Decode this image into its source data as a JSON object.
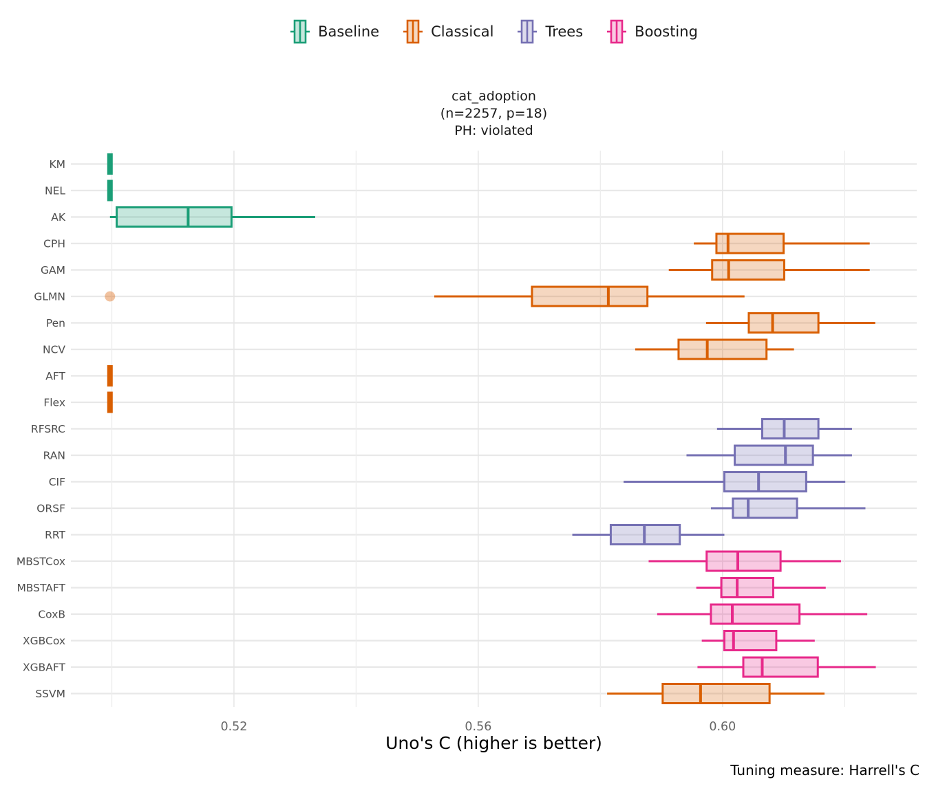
{
  "chart_data": {
    "type": "boxplot",
    "orientation": "horizontal",
    "title_lines": [
      "cat_adoption",
      "(n=2257, p=18)",
      "PH: violated"
    ],
    "xlabel": "Uno's C (higher is better)",
    "caption": "Tuning measure: Harrell's C",
    "legend_position": "top",
    "grid": true,
    "x_axis": {
      "lim": [
        0.4933,
        0.6318
      ],
      "major_ticks": [
        0.52,
        0.56,
        0.6
      ],
      "minor_ticks": [
        0.5,
        0.54,
        0.58,
        0.62
      ],
      "tick_labels": [
        "0.52",
        "0.56",
        "0.60"
      ]
    },
    "groups": [
      {
        "id": "baseline",
        "label": "Baseline",
        "color": "#1B9E77"
      },
      {
        "id": "classical",
        "label": "Classical",
        "color": "#D95F02"
      },
      {
        "id": "trees",
        "label": "Trees",
        "color": "#7570B3"
      },
      {
        "id": "boosting",
        "label": "Boosting",
        "color": "#E7298A"
      }
    ],
    "rows": [
      {
        "label": "KM",
        "group": "baseline",
        "lo": 0.4997,
        "q1": 0.4997,
        "median": 0.4997,
        "q3": 0.4997,
        "hi": 0.4997,
        "outliers": []
      },
      {
        "label": "NEL",
        "group": "baseline",
        "lo": 0.4997,
        "q1": 0.4997,
        "median": 0.4997,
        "q3": 0.4997,
        "hi": 0.4997,
        "outliers": []
      },
      {
        "label": "AK",
        "group": "baseline",
        "lo": 0.4997,
        "q1": 0.5008,
        "median": 0.5125,
        "q3": 0.5196,
        "hi": 0.5333,
        "outliers": []
      },
      {
        "label": "CPH",
        "group": "classical",
        "lo": 0.5953,
        "q1": 0.599,
        "median": 0.6009,
        "q3": 0.61,
        "hi": 0.6241,
        "outliers": []
      },
      {
        "label": "GAM",
        "group": "classical",
        "lo": 0.5912,
        "q1": 0.5983,
        "median": 0.601,
        "q3": 0.6101,
        "hi": 0.6241,
        "outliers": []
      },
      {
        "label": "GLMN",
        "group": "classical",
        "lo": 0.5528,
        "q1": 0.5688,
        "median": 0.5813,
        "q3": 0.5877,
        "hi": 0.6036,
        "outliers": [
          0.4997
        ]
      },
      {
        "label": "Pen",
        "group": "classical",
        "lo": 0.5973,
        "q1": 0.6043,
        "median": 0.6082,
        "q3": 0.6157,
        "hi": 0.625,
        "outliers": []
      },
      {
        "label": "NCV",
        "group": "classical",
        "lo": 0.5857,
        "q1": 0.5928,
        "median": 0.5975,
        "q3": 0.6072,
        "hi": 0.6117,
        "outliers": []
      },
      {
        "label": "AFT",
        "group": "classical",
        "lo": 0.4997,
        "q1": 0.4997,
        "median": 0.4997,
        "q3": 0.4997,
        "hi": 0.4997,
        "outliers": []
      },
      {
        "label": "Flex",
        "group": "classical",
        "lo": 0.4997,
        "q1": 0.4997,
        "median": 0.4997,
        "q3": 0.4997,
        "hi": 0.4997,
        "outliers": []
      },
      {
        "label": "RFSRC",
        "group": "trees",
        "lo": 0.5991,
        "q1": 0.6065,
        "median": 0.6101,
        "q3": 0.6157,
        "hi": 0.6212,
        "outliers": []
      },
      {
        "label": "RAN",
        "group": "trees",
        "lo": 0.5941,
        "q1": 0.602,
        "median": 0.6103,
        "q3": 0.6148,
        "hi": 0.6212,
        "outliers": []
      },
      {
        "label": "CIF",
        "group": "trees",
        "lo": 0.5838,
        "q1": 0.6003,
        "median": 0.6059,
        "q3": 0.6137,
        "hi": 0.6201,
        "outliers": []
      },
      {
        "label": "ORSF",
        "group": "trees",
        "lo": 0.5981,
        "q1": 0.6017,
        "median": 0.6042,
        "q3": 0.6122,
        "hi": 0.6234,
        "outliers": []
      },
      {
        "label": "RRT",
        "group": "trees",
        "lo": 0.5754,
        "q1": 0.5817,
        "median": 0.5872,
        "q3": 0.593,
        "hi": 0.6003,
        "outliers": []
      },
      {
        "label": "MBSTCox",
        "group": "boosting",
        "lo": 0.5879,
        "q1": 0.5974,
        "median": 0.6025,
        "q3": 0.6095,
        "hi": 0.6194,
        "outliers": []
      },
      {
        "label": "MBSTAFT",
        "group": "boosting",
        "lo": 0.5957,
        "q1": 0.5998,
        "median": 0.6024,
        "q3": 0.6083,
        "hi": 0.6169,
        "outliers": []
      },
      {
        "label": "CoxB",
        "group": "boosting",
        "lo": 0.5893,
        "q1": 0.5981,
        "median": 0.6016,
        "q3": 0.6126,
        "hi": 0.6237,
        "outliers": []
      },
      {
        "label": "XGBCox",
        "group": "boosting",
        "lo": 0.5966,
        "q1": 0.6003,
        "median": 0.6018,
        "q3": 0.6088,
        "hi": 0.6151,
        "outliers": []
      },
      {
        "label": "XGBAFT",
        "group": "boosting",
        "lo": 0.5959,
        "q1": 0.6034,
        "median": 0.6065,
        "q3": 0.6156,
        "hi": 0.6251,
        "outliers": []
      },
      {
        "label": "SSVM",
        "group": "classical",
        "lo": 0.5811,
        "q1": 0.5902,
        "median": 0.5964,
        "q3": 0.6077,
        "hi": 0.6167,
        "outliers": []
      }
    ]
  },
  "colors": {
    "grid_major": "#E6E6E6",
    "grid_minor": "#EDEDED",
    "grid_row": "#E8E8E8",
    "tick_text": "#666666",
    "category_text": "#4D4D4D",
    "text": "#1A1A1A"
  }
}
